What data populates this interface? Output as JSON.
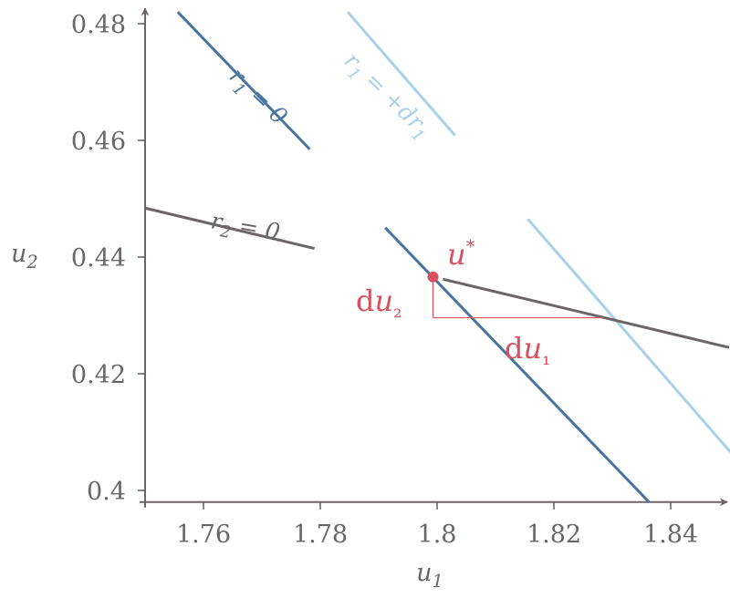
{
  "chart_data": {
    "type": "line",
    "title": "",
    "xlabel": "u",
    "xlabel_sub": "1",
    "ylabel": "u",
    "ylabel_sub": "2",
    "xlim": [
      1.75,
      1.85
    ],
    "ylim": [
      0.398,
      0.482
    ],
    "x_ticks": [
      1.76,
      1.78,
      1.8,
      1.82,
      1.84
    ],
    "x_tick_labels": [
      "1.76",
      "1.78",
      "1.8",
      "1.82",
      "1.84"
    ],
    "y_ticks": [
      0.4,
      0.42,
      0.44,
      0.46,
      0.48
    ],
    "y_tick_labels": [
      "0.4",
      "0.42",
      "0.44",
      "0.46",
      "0.48"
    ],
    "grid": false,
    "series": [
      {
        "label": "r₁ = 0",
        "color": "#4a74a0",
        "x": [
          1.7556,
          1.8363
        ],
        "y": [
          0.482,
          0.398
        ]
      },
      {
        "label": "r₁ = +dr₁",
        "color": "#a8d0e6",
        "x": [
          1.7847,
          1.8503
        ],
        "y": [
          0.482,
          0.4065
        ]
      },
      {
        "label": "r₂ = 0",
        "color": "#6b6567",
        "x": [
          1.75,
          1.85
        ],
        "y": [
          0.4484,
          0.4245
        ]
      }
    ],
    "annotations": {
      "point": {
        "label": "u*",
        "x": 1.7993,
        "y": 0.4366,
        "color": "#d9515e"
      },
      "du1_label": "du₁",
      "du2_label": "du₂",
      "corner": {
        "x1": 1.7993,
        "x2": 1.8283,
        "y_low": 0.4296
      }
    }
  }
}
